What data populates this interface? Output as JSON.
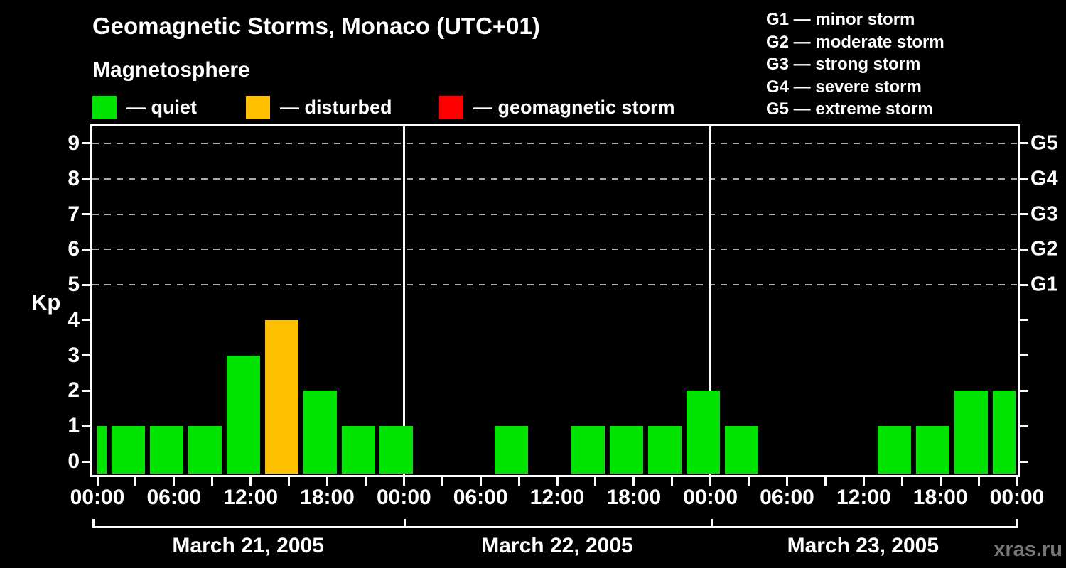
{
  "header": {
    "title": "Geomagnetic Storms, Monaco (UTC+01)",
    "subtitle": "Magnetosphere"
  },
  "condition_legend": [
    {
      "name": "quiet",
      "label": "— quiet",
      "color": "#00e400"
    },
    {
      "name": "disturbed",
      "label": "— disturbed",
      "color": "#ffc000"
    },
    {
      "name": "geomagnetic-storm",
      "label": "— geomagnetic storm",
      "color": "#ff0000"
    }
  ],
  "storm_scale_legend": [
    "G1 — minor storm",
    "G2 — moderate storm",
    "G3 — strong storm",
    "G4 — severe storm",
    "G5 — extreme storm"
  ],
  "watermark": "xras.ru",
  "chart_data": {
    "type": "bar",
    "title": "Geomagnetic Storms, Monaco (UTC+01)",
    "ylabel": "Kp",
    "ylim": [
      0,
      9
    ],
    "y_ticks": [
      0,
      1,
      2,
      3,
      4,
      5,
      6,
      7,
      8,
      9
    ],
    "grid_levels": [
      5,
      6,
      7,
      8,
      9
    ],
    "grid_on": true,
    "legend_position": "top",
    "right_axis": [
      {
        "value": 5,
        "label": "G1"
      },
      {
        "value": 6,
        "label": "G2"
      },
      {
        "value": 7,
        "label": "G3"
      },
      {
        "value": 8,
        "label": "G4"
      },
      {
        "value": 9,
        "label": "G5"
      }
    ],
    "interval_hours": 3,
    "x_tick_labels": [
      "00:00",
      "06:00",
      "12:00",
      "18:00",
      "00:00",
      "06:00",
      "12:00",
      "18:00",
      "00:00",
      "06:00",
      "12:00",
      "18:00",
      "00:00"
    ],
    "pre_range_bar": {
      "value": 1
    },
    "days": [
      {
        "date": "March 21, 2005",
        "values": [
          1,
          1,
          1,
          3,
          4,
          2,
          1,
          1
        ]
      },
      {
        "date": "March 22, 2005",
        "values": [
          0,
          0,
          1,
          0,
          1,
          1,
          1,
          2
        ]
      },
      {
        "date": "March 23, 2005",
        "values": [
          1,
          0,
          0,
          0,
          1,
          1,
          2,
          2
        ]
      }
    ],
    "color_rules": {
      "quiet_max_kp": 3,
      "disturbed_max_kp": 4
    },
    "colors": {
      "quiet": "#00e400",
      "disturbed": "#ffc000",
      "storm": "#ff0000"
    }
  }
}
